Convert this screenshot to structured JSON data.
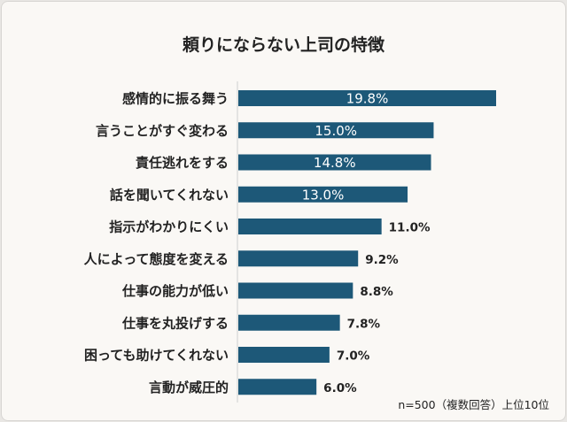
{
  "chart_data": {
    "type": "bar",
    "orientation": "horizontal",
    "title": "頼りにならない上司の特徴",
    "categories": [
      "感情的に振る舞う",
      "言うことがすぐ変わる",
      "責任逃れをする",
      "話を聞いてくれない",
      "指示がわかりにくい",
      "人によって態度を変える",
      "仕事の能力が低い",
      "仕事を丸投げする",
      "困っても助けてくれない",
      "言動が威圧的"
    ],
    "values": [
      19.8,
      15.0,
      14.8,
      13.0,
      11.0,
      9.2,
      8.8,
      7.8,
      7.0,
      6.0
    ],
    "value_labels": [
      "19.8%",
      "15.0%",
      "14.8%",
      "13.0%",
      "11.0%",
      "9.2%",
      "8.8%",
      "7.8%",
      "7.0%",
      "6.0%"
    ],
    "unit": "%",
    "bar_color": "#1d5878",
    "background": "#faf8f5",
    "grid": false,
    "note": "n=500（複数回答）上位10位"
  }
}
